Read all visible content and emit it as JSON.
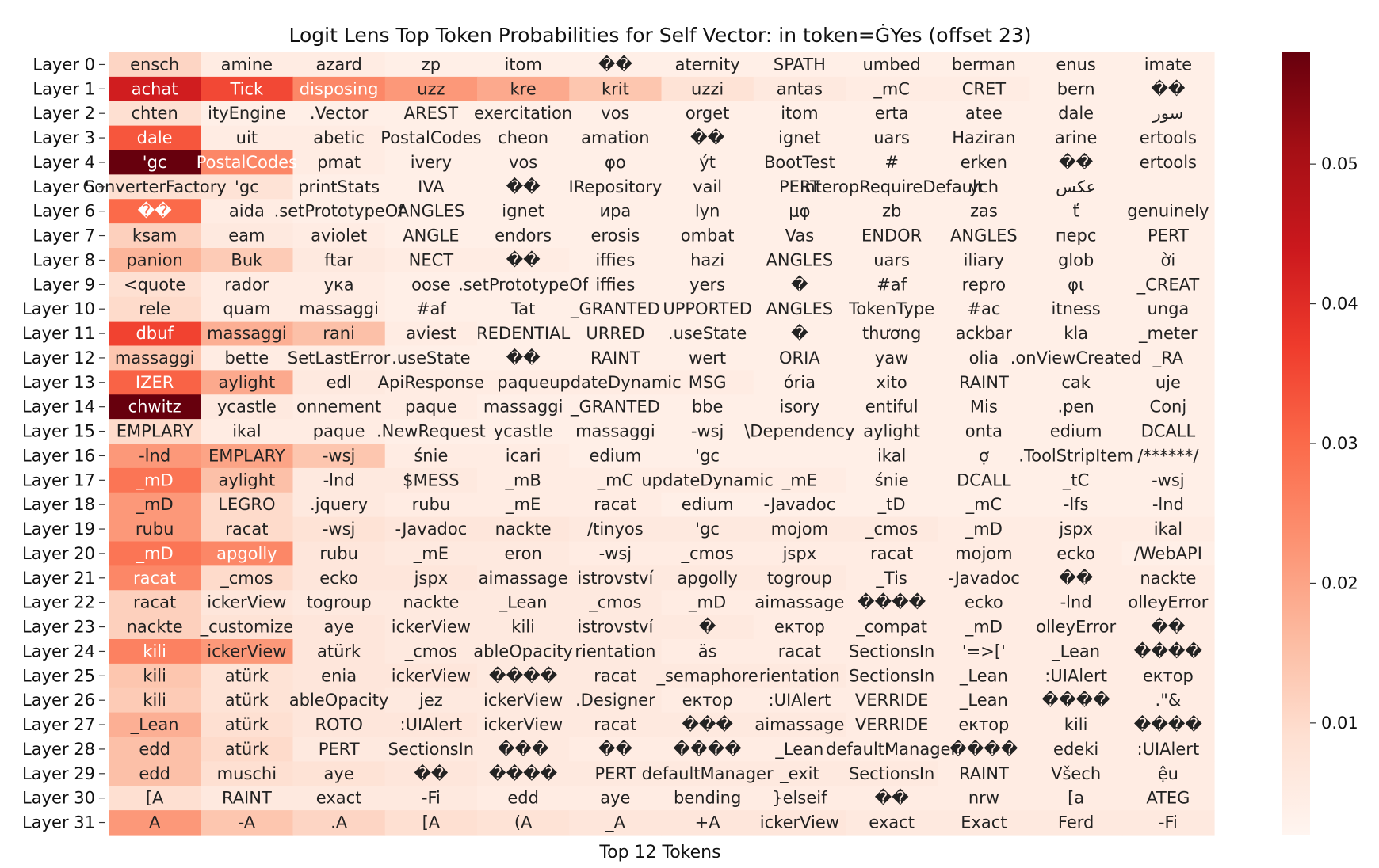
{
  "chart_data": {
    "type": "heatmap",
    "title": "Logit Lens Top Token Probabilities for Self Vector: in token=ĠYes (offset 23)",
    "xlabel": "Top 12 Tokens",
    "ylabel": "",
    "colormap": "Reds",
    "colorbar": {
      "range": [
        0.002,
        0.058
      ],
      "ticks": [
        0.01,
        0.02,
        0.03,
        0.04,
        0.05
      ],
      "tick_labels": [
        "0.01",
        "0.02",
        "0.03",
        "0.04",
        "0.05"
      ]
    },
    "rows": [
      "Layer 0",
      "Layer 1",
      "Layer 2",
      "Layer 3",
      "Layer 4",
      "Layer 5",
      "Layer 6",
      "Layer 7",
      "Layer 8",
      "Layer 9",
      "Layer 10",
      "Layer 11",
      "Layer 12",
      "Layer 13",
      "Layer 14",
      "Layer 15",
      "Layer 16",
      "Layer 17",
      "Layer 18",
      "Layer 19",
      "Layer 20",
      "Layer 21",
      "Layer 22",
      "Layer 23",
      "Layer 24",
      "Layer 25",
      "Layer 26",
      "Layer 27",
      "Layer 28",
      "Layer 29",
      "Layer 30",
      "Layer 31"
    ],
    "tokens": [
      [
        "ensch",
        "amine",
        "azard",
        "zp",
        "itom",
        "��",
        "aternity",
        "SPATH",
        "umbed",
        "berman",
        "enus",
        "imate"
      ],
      [
        "achat",
        "Tick",
        "disposing",
        "uzz",
        "kre",
        "krit",
        "uzzi",
        "antas",
        "_mC",
        "CRET",
        "bern",
        "��"
      ],
      [
        "chten",
        "ityEngine",
        ".Vector",
        "AREST",
        "exercitation",
        "vos",
        "orget",
        "itom",
        "erta",
        "atee",
        "dale",
        "سور"
      ],
      [
        "dale",
        "uit",
        "abetic",
        "PostalCodes",
        "cheon",
        "amation",
        "��",
        "ignet",
        "uars",
        "Haziran",
        "arine",
        "ertools"
      ],
      [
        "'gc",
        "PostalCodes",
        "pmat",
        "ivery",
        "vos",
        "φο",
        "ýt",
        "BootTest",
        "#",
        "erken",
        "��",
        "ertools"
      ],
      [
        "ConverterFactory",
        "'gc",
        "printStats",
        "IVA",
        "��",
        "IRepository",
        "vail",
        "PERT",
        "InteropRequireDefault",
        "ych",
        "عکس",
        ""
      ],
      [
        "��",
        "aida",
        ".setPrototypeOf",
        "ANGLES",
        "ignet",
        "ира",
        "lyn",
        "μφ",
        "zb",
        "zas",
        "ť",
        "genuinely"
      ],
      [
        "ksam",
        "eam",
        "aviolet",
        "ANGLE",
        "endors",
        "erosis",
        "ombat",
        "Vas",
        "ENDOR",
        "ANGLES",
        "перс",
        "PERT"
      ],
      [
        "panion",
        "Buk",
        "ftar",
        "NECT",
        "��",
        "iffies",
        "hazi",
        "ANGLES",
        "uars",
        "iliary",
        "glob",
        "ời"
      ],
      [
        "<quote",
        "rador",
        "ука",
        "oose",
        ".setPrototypeOf",
        "iffies",
        "yers",
        "�",
        "#af",
        "repro",
        "φι",
        "_CREAT"
      ],
      [
        "rele",
        "quam",
        "massaggi",
        "#af",
        "Tat",
        "_GRANTED",
        "UPPORTED",
        "ANGLES",
        "TokenType",
        "#ac",
        "itness",
        "unga"
      ],
      [
        "dbuf",
        "massaggi",
        "rani",
        "aviest",
        "REDENTIAL",
        "URRED",
        ".useState",
        "�",
        "thương",
        "ackbar",
        "kla",
        "_meter"
      ],
      [
        "massaggi",
        "bette",
        "SetLastError",
        ".useState",
        "��",
        "RAINT",
        "wert",
        "ORIA",
        "yaw",
        "olia",
        ".onViewCreated",
        "_RA"
      ],
      [
        "IZER",
        "aylight",
        "edl",
        "ApiResponse",
        "paque",
        "updateDynamic",
        "MSG",
        "ória",
        "xito",
        "RAINT",
        "cak",
        "uje"
      ],
      [
        "chwitz",
        "ycastle",
        "onnement",
        "paque",
        "massaggi",
        "_GRANTED",
        "bbe",
        "isory",
        "entiful",
        "Mis",
        ".pen",
        "Conj"
      ],
      [
        "EMPLARY",
        "ikal",
        "paque",
        ".NewRequest",
        "ycastle",
        "massaggi",
        "-wsj",
        "\\Dependency",
        "aylight",
        "onta",
        "edium",
        "DCALL"
      ],
      [
        "-lnd",
        "EMPLARY",
        "-wsj",
        "śnie",
        "icari",
        "edium",
        "'gc",
        "",
        "ikal",
        "ợ",
        ".ToolStripItem",
        "/******/"
      ],
      [
        "_mD",
        "aylight",
        "-lnd",
        "$MESS",
        "_mB",
        "_mC",
        "updateDynamic",
        "_mE",
        "śnie",
        "DCALL",
        "_tC",
        "-wsj"
      ],
      [
        "_mD",
        "LEGRO",
        ".jquery",
        "rubu",
        "_mE",
        "racat",
        "edium",
        "-Javadoc",
        "_tD",
        "_mC",
        "-lfs",
        "-lnd"
      ],
      [
        "rubu",
        "racat",
        "-wsj",
        "-Javadoc",
        "nackte",
        "/tinyos",
        "'gc",
        "mojom",
        "_cmos",
        "_mD",
        "jspx",
        "ikal"
      ],
      [
        "_mD",
        "apgolly",
        "rubu",
        "_mE",
        "eron",
        "-wsj",
        "_cmos",
        "jspx",
        "racat",
        "mojom",
        "ecko",
        "/WebAPI"
      ],
      [
        "racat",
        "_cmos",
        "ecko",
        "jspx",
        "aimassage",
        "istrovství",
        "apgolly",
        "togroup",
        "_Tis",
        "-Javadoc",
        "��",
        "nackte"
      ],
      [
        "racat",
        "ickerView",
        "togroup",
        "nackte",
        "_Lean",
        "_cmos",
        "_mD",
        "aimassage",
        "����",
        "ecko",
        "-lnd",
        "olleyError"
      ],
      [
        "nackte",
        "_customize",
        "aye",
        "ickerView",
        "kili",
        "istrovství",
        "�",
        "ектор",
        "_compat",
        "_mD",
        "olleyError",
        "��"
      ],
      [
        "kili",
        "ickerView",
        "atürk",
        "_cmos",
        "ableOpacity",
        "rientation",
        "äs",
        "racat",
        "SectionsIn",
        "'=>['",
        "_Lean",
        "����"
      ],
      [
        "kili",
        "atürk",
        "enia",
        "ickerView",
        "����",
        "racat",
        "_semaphore",
        "rientation",
        "SectionsIn",
        "_Lean",
        ":UIAlert",
        "ектор"
      ],
      [
        "kili",
        "atürk",
        "ableOpacity",
        "jez",
        "ickerView",
        ".Designer",
        "ектор",
        ":UIAlert",
        "VERRIDE",
        "_Lean",
        "����",
        ".\"&"
      ],
      [
        "_Lean",
        "atürk",
        "ROTO",
        ":UIAlert",
        "ickerView",
        "racat",
        "���",
        "aimassage",
        "VERRIDE",
        "ектор",
        "kili",
        "����"
      ],
      [
        "edd",
        "atürk",
        "PERT",
        "SectionsIn",
        "���",
        "��",
        "����",
        "_Lean",
        "defaultManager",
        "����",
        "edeki",
        ":UIAlert"
      ],
      [
        "edd",
        "muschi",
        "aye",
        "��",
        "����",
        "PERT",
        "defaultManager",
        "_exit",
        "SectionsIn",
        "RAINT",
        "Všech",
        "ệu"
      ],
      [
        "[A",
        "RAINT",
        "exact",
        "-Fi",
        "edd",
        "aye",
        "bending",
        "}elseif",
        "��",
        "nrw",
        "[a",
        "ATEG"
      ],
      [
        "A",
        "-A",
        ".A",
        "[A",
        "(A",
        "_A",
        "+A",
        "ickerView",
        "exact",
        "Exact",
        "Ferd",
        "-Fi"
      ]
    ],
    "values": [
      [
        0.011,
        0.005,
        0.005,
        0.004,
        0.004,
        0.004,
        0.004,
        0.004,
        0.004,
        0.004,
        0.004,
        0.004
      ],
      [
        0.043,
        0.035,
        0.025,
        0.022,
        0.019,
        0.014,
        0.008,
        0.006,
        0.005,
        0.005,
        0.004,
        0.004
      ],
      [
        0.009,
        0.004,
        0.004,
        0.004,
        0.004,
        0.004,
        0.004,
        0.004,
        0.004,
        0.004,
        0.004,
        0.004
      ],
      [
        0.033,
        0.005,
        0.005,
        0.004,
        0.004,
        0.004,
        0.004,
        0.004,
        0.004,
        0.004,
        0.004,
        0.004
      ],
      [
        0.058,
        0.025,
        0.005,
        0.004,
        0.004,
        0.004,
        0.004,
        0.004,
        0.004,
        0.004,
        0.004,
        0.004
      ],
      [
        0.009,
        0.008,
        0.004,
        0.004,
        0.004,
        0.004,
        0.004,
        0.004,
        0.004,
        0.004,
        0.004,
        0.004
      ],
      [
        0.03,
        0.005,
        0.004,
        0.004,
        0.004,
        0.004,
        0.004,
        0.004,
        0.004,
        0.004,
        0.004,
        0.004
      ],
      [
        0.012,
        0.006,
        0.005,
        0.004,
        0.004,
        0.004,
        0.004,
        0.004,
        0.004,
        0.004,
        0.004,
        0.004
      ],
      [
        0.017,
        0.013,
        0.006,
        0.005,
        0.005,
        0.004,
        0.004,
        0.004,
        0.004,
        0.004,
        0.004,
        0.004
      ],
      [
        0.009,
        0.005,
        0.005,
        0.004,
        0.004,
        0.004,
        0.004,
        0.004,
        0.004,
        0.004,
        0.004,
        0.004
      ],
      [
        0.01,
        0.005,
        0.005,
        0.004,
        0.004,
        0.004,
        0.004,
        0.004,
        0.004,
        0.004,
        0.004,
        0.004
      ],
      [
        0.036,
        0.018,
        0.015,
        0.005,
        0.004,
        0.004,
        0.004,
        0.004,
        0.004,
        0.004,
        0.004,
        0.004
      ],
      [
        0.014,
        0.005,
        0.005,
        0.004,
        0.004,
        0.004,
        0.004,
        0.004,
        0.004,
        0.004,
        0.004,
        0.004
      ],
      [
        0.031,
        0.019,
        0.006,
        0.005,
        0.005,
        0.005,
        0.005,
        0.004,
        0.004,
        0.004,
        0.004,
        0.004
      ],
      [
        0.058,
        0.006,
        0.005,
        0.005,
        0.004,
        0.004,
        0.004,
        0.004,
        0.004,
        0.004,
        0.004,
        0.004
      ],
      [
        0.01,
        0.005,
        0.005,
        0.004,
        0.004,
        0.004,
        0.004,
        0.004,
        0.004,
        0.004,
        0.004,
        0.004
      ],
      [
        0.022,
        0.02,
        0.014,
        0.005,
        0.005,
        0.004,
        0.004,
        0.004,
        0.004,
        0.004,
        0.004,
        0.004
      ],
      [
        0.028,
        0.015,
        0.006,
        0.006,
        0.005,
        0.005,
        0.005,
        0.005,
        0.004,
        0.004,
        0.004,
        0.004
      ],
      [
        0.022,
        0.01,
        0.006,
        0.005,
        0.005,
        0.005,
        0.004,
        0.004,
        0.004,
        0.004,
        0.004,
        0.004
      ],
      [
        0.022,
        0.01,
        0.008,
        0.007,
        0.007,
        0.006,
        0.006,
        0.006,
        0.006,
        0.005,
        0.005,
        0.005
      ],
      [
        0.028,
        0.025,
        0.007,
        0.006,
        0.006,
        0.005,
        0.005,
        0.005,
        0.005,
        0.005,
        0.005,
        0.004
      ],
      [
        0.025,
        0.01,
        0.007,
        0.007,
        0.006,
        0.006,
        0.006,
        0.006,
        0.005,
        0.005,
        0.005,
        0.005
      ],
      [
        0.012,
        0.007,
        0.006,
        0.006,
        0.006,
        0.006,
        0.005,
        0.005,
        0.005,
        0.005,
        0.005,
        0.005
      ],
      [
        0.012,
        0.008,
        0.007,
        0.006,
        0.006,
        0.006,
        0.006,
        0.005,
        0.005,
        0.005,
        0.005,
        0.005
      ],
      [
        0.026,
        0.022,
        0.007,
        0.006,
        0.006,
        0.006,
        0.005,
        0.005,
        0.005,
        0.005,
        0.005,
        0.005
      ],
      [
        0.014,
        0.008,
        0.007,
        0.007,
        0.006,
        0.006,
        0.006,
        0.006,
        0.005,
        0.005,
        0.005,
        0.005
      ],
      [
        0.013,
        0.008,
        0.007,
        0.006,
        0.006,
        0.006,
        0.005,
        0.005,
        0.005,
        0.005,
        0.005,
        0.005
      ],
      [
        0.018,
        0.009,
        0.007,
        0.007,
        0.006,
        0.006,
        0.006,
        0.006,
        0.005,
        0.005,
        0.005,
        0.005
      ],
      [
        0.015,
        0.01,
        0.006,
        0.006,
        0.006,
        0.005,
        0.005,
        0.005,
        0.005,
        0.005,
        0.005,
        0.005
      ],
      [
        0.015,
        0.009,
        0.008,
        0.007,
        0.006,
        0.006,
        0.006,
        0.006,
        0.006,
        0.005,
        0.005,
        0.005
      ],
      [
        0.009,
        0.006,
        0.006,
        0.006,
        0.005,
        0.005,
        0.005,
        0.005,
        0.005,
        0.005,
        0.005,
        0.005
      ],
      [
        0.022,
        0.014,
        0.011,
        0.009,
        0.008,
        0.007,
        0.007,
        0.007,
        0.006,
        0.006,
        0.006,
        0.006
      ]
    ]
  }
}
